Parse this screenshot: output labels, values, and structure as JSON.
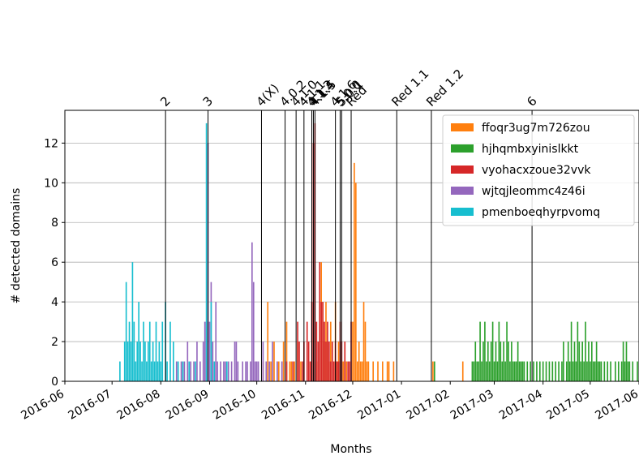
{
  "chart_data": {
    "type": "bar",
    "xlabel": "Months",
    "ylabel": "# detected domains",
    "ylim": [
      0,
      13.65
    ],
    "xlim": [
      "2016-06-01",
      "2017-06-01"
    ],
    "grid": "horizontal",
    "legend_position": "top-right",
    "y_ticks": [
      0,
      2,
      4,
      6,
      8,
      10,
      12
    ],
    "x_ticks": [
      "2016-06",
      "2016-07",
      "2016-08",
      "2016-09",
      "2016-10",
      "2016-11",
      "2016-12",
      "2017-01",
      "2017-02",
      "2017-03",
      "2017-04",
      "2017-05",
      "2017-06"
    ],
    "events": [
      {
        "label": "2",
        "date": "2016-08-04"
      },
      {
        "label": "3",
        "date": "2016-08-31"
      },
      {
        "label": "4(X)",
        "date": "2016-10-04"
      },
      {
        "label": "4.0.2",
        "date": "2016-10-19"
      },
      {
        "label": "4.1.0",
        "date": "2016-10-26"
      },
      {
        "label": "4.1.1",
        "date": "2016-10-31"
      },
      {
        "label": "4.1.3",
        "date": "2016-11-05"
      },
      {
        "label": "4.1.4",
        "date": "2016-11-06"
      },
      {
        "label": "4.1.5",
        "date": "2016-11-07"
      },
      {
        "label": "4.1.6",
        "date": "2016-11-20"
      },
      {
        "label": "5.0.0",
        "date": "2016-11-23"
      },
      {
        "label": "5.0.1",
        "date": "2016-11-24"
      },
      {
        "label": "Red",
        "date": "2016-11-30"
      },
      {
        "label": "Red 1.1",
        "date": "2016-12-29"
      },
      {
        "label": "Red 1.2",
        "date": "2017-01-20"
      },
      {
        "label": "6",
        "date": "2017-03-25"
      }
    ],
    "series": [
      {
        "name": "ffoqr3ug7m726zou",
        "color": "#ff7f0e",
        "points": [
          [
            "2016-10-05",
            1
          ],
          [
            "2016-10-08",
            4
          ],
          [
            "2016-10-10",
            1
          ],
          [
            "2016-10-12",
            2
          ],
          [
            "2016-10-14",
            1
          ],
          [
            "2016-10-15",
            1
          ],
          [
            "2016-10-17",
            1
          ],
          [
            "2016-10-18",
            2
          ],
          [
            "2016-10-20",
            3
          ],
          [
            "2016-10-22",
            1
          ],
          [
            "2016-10-23",
            1
          ],
          [
            "2016-10-25",
            1
          ],
          [
            "2016-10-27",
            2
          ],
          [
            "2016-10-29",
            1
          ],
          [
            "2016-11-08",
            1
          ],
          [
            "2016-11-10",
            4
          ],
          [
            "2016-11-11",
            6
          ],
          [
            "2016-11-12",
            4
          ],
          [
            "2016-11-13",
            2
          ],
          [
            "2016-11-14",
            4
          ],
          [
            "2016-11-15",
            2
          ],
          [
            "2016-11-16",
            1
          ],
          [
            "2016-11-17",
            3
          ],
          [
            "2016-11-18",
            2
          ],
          [
            "2016-11-20",
            4
          ],
          [
            "2016-11-21",
            1
          ],
          [
            "2016-11-22",
            2
          ],
          [
            "2016-11-24",
            1
          ],
          [
            "2016-11-25",
            1
          ],
          [
            "2016-11-26",
            2
          ],
          [
            "2016-11-27",
            1
          ],
          [
            "2016-12-01",
            3
          ],
          [
            "2016-12-02",
            11
          ],
          [
            "2016-12-03",
            10
          ],
          [
            "2016-12-04",
            1
          ],
          [
            "2016-12-05",
            2
          ],
          [
            "2016-12-06",
            1
          ],
          [
            "2016-12-07",
            1
          ],
          [
            "2016-12-08",
            4
          ],
          [
            "2016-12-09",
            3
          ],
          [
            "2016-12-10",
            1
          ],
          [
            "2016-12-11",
            1
          ],
          [
            "2016-12-14",
            1
          ],
          [
            "2016-12-17",
            1
          ],
          [
            "2016-12-20",
            1
          ],
          [
            "2016-12-23",
            1
          ],
          [
            "2016-12-24",
            1
          ],
          [
            "2016-12-27",
            1
          ],
          [
            "2017-01-21",
            1
          ],
          [
            "2017-02-09",
            1
          ]
        ]
      },
      {
        "name": "hjhqmbxyinislkkt",
        "color": "#2ca02c",
        "points": [
          [
            "2017-01-22",
            1
          ],
          [
            "2017-02-15",
            1
          ],
          [
            "2017-02-16",
            1
          ],
          [
            "2017-02-17",
            2
          ],
          [
            "2017-02-18",
            1
          ],
          [
            "2017-02-19",
            1
          ],
          [
            "2017-02-20",
            3
          ],
          [
            "2017-02-21",
            1
          ],
          [
            "2017-02-22",
            2
          ],
          [
            "2017-02-23",
            3
          ],
          [
            "2017-02-24",
            1
          ],
          [
            "2017-02-25",
            2
          ],
          [
            "2017-02-26",
            1
          ],
          [
            "2017-02-27",
            2
          ],
          [
            "2017-02-28",
            3
          ],
          [
            "2017-03-01",
            1
          ],
          [
            "2017-03-02",
            2
          ],
          [
            "2017-03-03",
            1
          ],
          [
            "2017-03-04",
            3
          ],
          [
            "2017-03-05",
            2
          ],
          [
            "2017-03-06",
            1
          ],
          [
            "2017-03-07",
            2
          ],
          [
            "2017-03-08",
            1
          ],
          [
            "2017-03-09",
            3
          ],
          [
            "2017-03-10",
            2
          ],
          [
            "2017-03-11",
            1
          ],
          [
            "2017-03-12",
            2
          ],
          [
            "2017-03-13",
            1
          ],
          [
            "2017-03-14",
            1
          ],
          [
            "2017-03-15",
            1
          ],
          [
            "2017-03-16",
            2
          ],
          [
            "2017-03-17",
            1
          ],
          [
            "2017-03-18",
            1
          ],
          [
            "2017-03-19",
            1
          ],
          [
            "2017-03-20",
            1
          ],
          [
            "2017-03-22",
            1
          ],
          [
            "2017-03-24",
            1
          ],
          [
            "2017-03-26",
            1
          ],
          [
            "2017-03-28",
            1
          ],
          [
            "2017-03-30",
            1
          ],
          [
            "2017-04-01",
            1
          ],
          [
            "2017-04-03",
            1
          ],
          [
            "2017-04-05",
            1
          ],
          [
            "2017-04-07",
            1
          ],
          [
            "2017-04-09",
            1
          ],
          [
            "2017-04-11",
            1
          ],
          [
            "2017-04-13",
            1
          ],
          [
            "2017-04-14",
            2
          ],
          [
            "2017-04-16",
            1
          ],
          [
            "2017-04-17",
            2
          ],
          [
            "2017-04-18",
            1
          ],
          [
            "2017-04-19",
            3
          ],
          [
            "2017-04-20",
            1
          ],
          [
            "2017-04-21",
            2
          ],
          [
            "2017-04-22",
            1
          ],
          [
            "2017-04-23",
            3
          ],
          [
            "2017-04-24",
            2
          ],
          [
            "2017-04-25",
            1
          ],
          [
            "2017-04-26",
            2
          ],
          [
            "2017-04-27",
            1
          ],
          [
            "2017-04-28",
            3
          ],
          [
            "2017-04-29",
            1
          ],
          [
            "2017-04-30",
            2
          ],
          [
            "2017-05-01",
            1
          ],
          [
            "2017-05-02",
            2
          ],
          [
            "2017-05-03",
            1
          ],
          [
            "2017-05-04",
            1
          ],
          [
            "2017-05-05",
            2
          ],
          [
            "2017-05-06",
            1
          ],
          [
            "2017-05-07",
            1
          ],
          [
            "2017-05-08",
            1
          ],
          [
            "2017-05-10",
            1
          ],
          [
            "2017-05-12",
            1
          ],
          [
            "2017-05-14",
            1
          ],
          [
            "2017-05-17",
            1
          ],
          [
            "2017-05-19",
            1
          ],
          [
            "2017-05-21",
            1
          ],
          [
            "2017-05-22",
            2
          ],
          [
            "2017-05-23",
            1
          ],
          [
            "2017-05-24",
            2
          ],
          [
            "2017-05-25",
            1
          ],
          [
            "2017-05-26",
            1
          ],
          [
            "2017-05-28",
            1
          ],
          [
            "2017-05-31",
            1
          ]
        ]
      },
      {
        "name": "vyohacxzoue32vvk",
        "color": "#d62728",
        "points": [
          [
            "2016-10-20",
            1
          ],
          [
            "2016-10-24",
            1
          ],
          [
            "2016-10-27",
            3
          ],
          [
            "2016-10-28",
            2
          ],
          [
            "2016-10-30",
            1
          ],
          [
            "2016-10-31",
            2
          ],
          [
            "2016-11-02",
            3
          ],
          [
            "2016-11-03",
            2
          ],
          [
            "2016-11-04",
            1
          ],
          [
            "2016-11-05",
            4
          ],
          [
            "2016-11-06",
            12
          ],
          [
            "2016-11-07",
            13
          ],
          [
            "2016-11-08",
            3
          ],
          [
            "2016-11-09",
            2
          ],
          [
            "2016-11-10",
            6
          ],
          [
            "2016-11-11",
            4
          ],
          [
            "2016-11-12",
            4
          ],
          [
            "2016-11-13",
            3
          ],
          [
            "2016-11-14",
            2
          ],
          [
            "2016-11-15",
            3
          ],
          [
            "2016-11-16",
            2
          ],
          [
            "2016-11-17",
            1
          ],
          [
            "2016-11-18",
            2
          ],
          [
            "2016-11-19",
            1
          ],
          [
            "2016-11-20",
            2
          ],
          [
            "2016-11-21",
            1
          ],
          [
            "2016-11-22",
            1
          ],
          [
            "2016-11-23",
            3
          ],
          [
            "2016-11-24",
            2
          ],
          [
            "2016-11-26",
            2
          ],
          [
            "2016-11-28",
            1
          ],
          [
            "2016-11-29",
            1
          ],
          [
            "2016-11-30",
            3
          ]
        ]
      },
      {
        "name": "wjtqjleommc4z46i",
        "color": "#9467bd",
        "points": [
          [
            "2016-08-11",
            1
          ],
          [
            "2016-08-14",
            1
          ],
          [
            "2016-08-16",
            1
          ],
          [
            "2016-08-18",
            2
          ],
          [
            "2016-08-20",
            1
          ],
          [
            "2016-08-22",
            1
          ],
          [
            "2016-08-24",
            2
          ],
          [
            "2016-08-26",
            1
          ],
          [
            "2016-08-28",
            2
          ],
          [
            "2016-08-29",
            3
          ],
          [
            "2016-08-30",
            3
          ],
          [
            "2016-08-31",
            12
          ],
          [
            "2016-09-01",
            3
          ],
          [
            "2016-09-02",
            5
          ],
          [
            "2016-09-03",
            2
          ],
          [
            "2016-09-04",
            1
          ],
          [
            "2016-09-05",
            4
          ],
          [
            "2016-09-06",
            1
          ],
          [
            "2016-09-08",
            1
          ],
          [
            "2016-09-10",
            1
          ],
          [
            "2016-09-11",
            1
          ],
          [
            "2016-09-13",
            1
          ],
          [
            "2016-09-15",
            1
          ],
          [
            "2016-09-17",
            2
          ],
          [
            "2016-09-18",
            2
          ],
          [
            "2016-09-19",
            1
          ],
          [
            "2016-09-22",
            1
          ],
          [
            "2016-09-24",
            1
          ],
          [
            "2016-09-25",
            1
          ],
          [
            "2016-09-27",
            1
          ],
          [
            "2016-09-28",
            7
          ],
          [
            "2016-09-29",
            5
          ],
          [
            "2016-09-30",
            1
          ],
          [
            "2016-10-01",
            1
          ],
          [
            "2016-10-02",
            1
          ],
          [
            "2016-10-05",
            2
          ],
          [
            "2016-10-07",
            1
          ],
          [
            "2016-10-09",
            1
          ],
          [
            "2016-10-11",
            2
          ],
          [
            "2016-10-14",
            1
          ],
          [
            "2016-10-17",
            1
          ]
        ]
      },
      {
        "name": "pmenboeqhyrpvomq",
        "color": "#17becf",
        "points": [
          [
            "2016-07-06",
            1
          ],
          [
            "2016-07-09",
            2
          ],
          [
            "2016-07-10",
            5
          ],
          [
            "2016-07-11",
            2
          ],
          [
            "2016-07-12",
            3
          ],
          [
            "2016-07-13",
            2
          ],
          [
            "2016-07-14",
            6
          ],
          [
            "2016-07-15",
            3
          ],
          [
            "2016-07-16",
            1
          ],
          [
            "2016-07-17",
            2
          ],
          [
            "2016-07-18",
            4
          ],
          [
            "2016-07-19",
            2
          ],
          [
            "2016-07-20",
            1
          ],
          [
            "2016-07-21",
            3
          ],
          [
            "2016-07-22",
            2
          ],
          [
            "2016-07-23",
            1
          ],
          [
            "2016-07-24",
            2
          ],
          [
            "2016-07-25",
            3
          ],
          [
            "2016-07-26",
            1
          ],
          [
            "2016-07-27",
            2
          ],
          [
            "2016-07-28",
            1
          ],
          [
            "2016-07-29",
            3
          ],
          [
            "2016-07-30",
            1
          ],
          [
            "2016-07-31",
            2
          ],
          [
            "2016-08-01",
            1
          ],
          [
            "2016-08-02",
            3
          ],
          [
            "2016-08-04",
            4
          ],
          [
            "2016-08-05",
            1
          ],
          [
            "2016-08-07",
            3
          ],
          [
            "2016-08-09",
            2
          ],
          [
            "2016-08-12",
            1
          ],
          [
            "2016-08-15",
            1
          ],
          [
            "2016-08-19",
            1
          ],
          [
            "2016-08-23",
            1
          ],
          [
            "2016-08-30",
            13
          ],
          [
            "2016-09-02",
            4
          ],
          [
            "2016-09-04",
            1
          ],
          [
            "2016-09-12",
            1
          ]
        ]
      }
    ]
  }
}
